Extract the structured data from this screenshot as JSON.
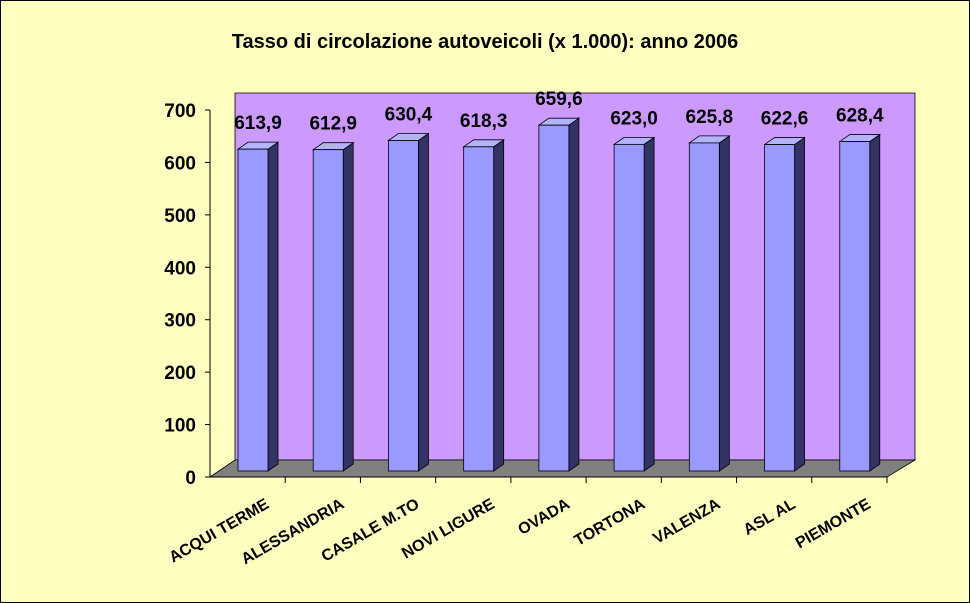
{
  "chart_data": {
    "type": "bar3d",
    "title": "Tasso di circolazione autoveicoli (x 1.000): anno 2006",
    "categories": [
      "ACQUI TERME",
      "ALESSANDRIA",
      "CASALE M.TO",
      "NOVI LIGURE",
      "OVADA",
      "TORTONA",
      "VALENZA",
      "ASL AL",
      "PIEMONTE"
    ],
    "values": [
      613.9,
      612.9,
      630.4,
      618.3,
      659.6,
      623.0,
      625.8,
      622.6,
      628.4
    ],
    "value_labels": [
      "613,9",
      "612,9",
      "630,4",
      "618,3",
      "659,6",
      "623,0",
      "625,8",
      "622,6",
      "628,4"
    ],
    "color": "#9999ff",
    "ylim": [
      0,
      700
    ],
    "yticks": [
      0,
      100,
      200,
      300,
      400,
      500,
      600,
      700
    ]
  }
}
